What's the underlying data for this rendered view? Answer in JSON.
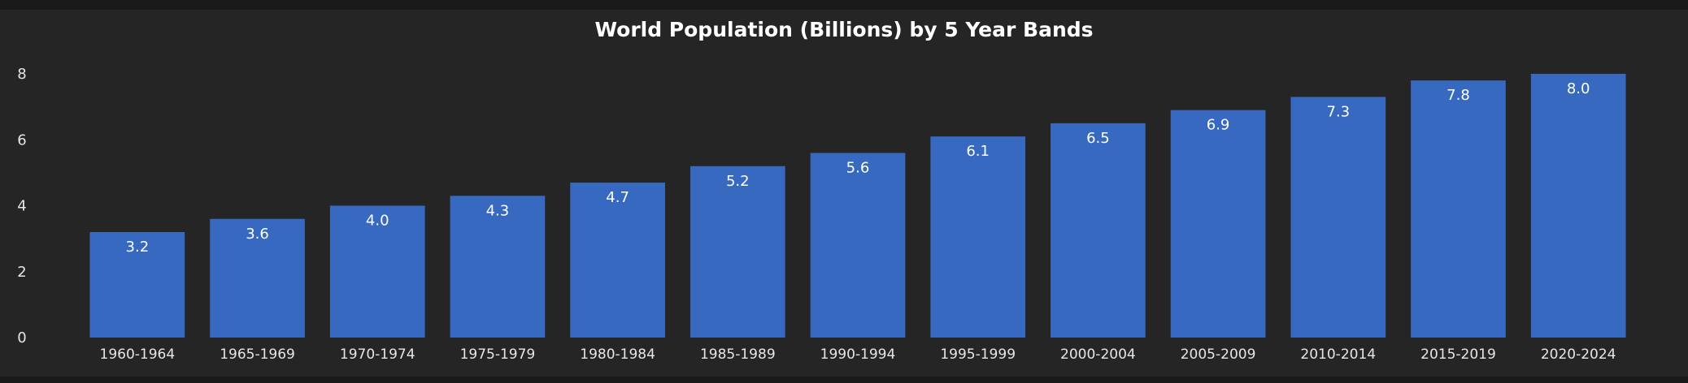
{
  "chart_data": {
    "type": "bar",
    "title": "World Population (Billions) by 5 Year Bands",
    "xlabel": "",
    "ylabel": "",
    "categories": [
      "1960-1964",
      "1965-1969",
      "1970-1974",
      "1975-1979",
      "1980-1984",
      "1985-1989",
      "1990-1994",
      "1995-1999",
      "2000-2004",
      "2005-2009",
      "2010-2014",
      "2015-2019",
      "2020-2024"
    ],
    "values": [
      3.2,
      3.6,
      4.0,
      4.3,
      4.7,
      5.2,
      5.6,
      6.1,
      6.5,
      6.9,
      7.3,
      7.8,
      8.0
    ],
    "data_labels": [
      "3.2",
      "3.6",
      "4.0",
      "4.3",
      "4.7",
      "5.2",
      "5.6",
      "6.1",
      "6.5",
      "6.9",
      "7.3",
      "7.8",
      "8.0"
    ],
    "ylim": [
      0,
      8
    ],
    "yticks": [
      "0",
      "2",
      "4",
      "6",
      "8"
    ],
    "grid": false,
    "legend": "none",
    "bar_color": "#3769c0",
    "background_color": "#252525"
  }
}
